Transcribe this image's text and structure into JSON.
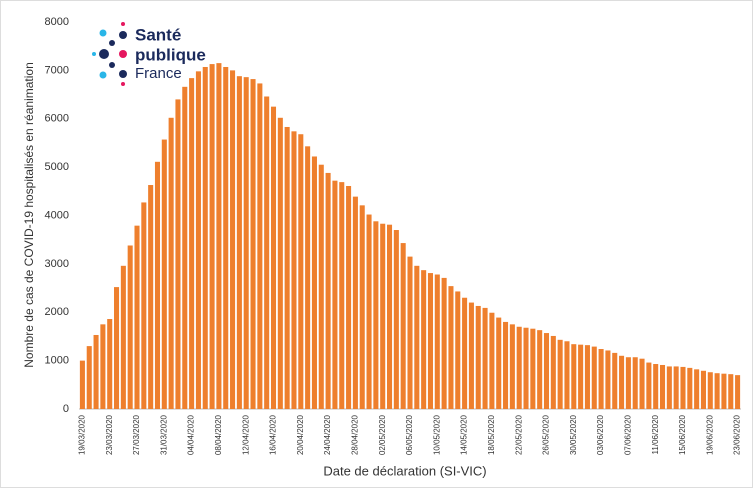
{
  "chart_data": {
    "type": "bar",
    "logo": [
      "Santé",
      "publique",
      "France"
    ],
    "x_label": "Date de déclaration (SI-VIC)",
    "y_label": "Nombre de cas de COVID-19 hospitalisés en réanimation",
    "color": "#ee7f2d",
    "ylim": [
      0,
      8000
    ],
    "yticks": [
      0,
      1000,
      2000,
      3000,
      4000,
      5000,
      6000,
      7000,
      8000
    ],
    "grid": false,
    "categories": [
      "19/03/2020",
      null,
      null,
      null,
      "23/03/2020",
      null,
      null,
      null,
      "27/03/2020",
      null,
      null,
      null,
      "31/03/2020",
      null,
      null,
      null,
      "04/04/2020",
      null,
      null,
      null,
      "08/04/2020",
      null,
      null,
      null,
      "12/04/2020",
      null,
      null,
      null,
      "16/04/2020",
      null,
      null,
      null,
      "20/04/2020",
      null,
      null,
      null,
      "24/04/2020",
      null,
      null,
      null,
      "28/04/2020",
      null,
      null,
      null,
      "02/05/2020",
      null,
      null,
      null,
      "06/05/2020",
      null,
      null,
      null,
      "10/05/2020",
      null,
      null,
      null,
      "14/05/2020",
      null,
      null,
      null,
      "18/05/2020",
      null,
      null,
      null,
      "22/05/2020",
      null,
      null,
      null,
      "26/05/2020",
      null,
      null,
      null,
      "30/05/2020",
      null,
      null,
      null,
      "03/06/2020",
      null,
      null,
      null,
      "07/06/2020",
      null,
      null,
      null,
      "11/06/2020",
      null,
      null,
      null,
      "15/06/2020",
      null,
      null,
      null,
      "19/06/2020",
      null,
      null,
      null,
      "23/06/2020"
    ],
    "values": [
      1000,
      1300,
      1530,
      1750,
      1860,
      2520,
      2960,
      3380,
      3790,
      4270,
      4630,
      5110,
      5570,
      6020,
      6400,
      6660,
      6840,
      6980,
      7070,
      7130,
      7150,
      7070,
      7000,
      6880,
      6860,
      6820,
      6730,
      6460,
      6250,
      6020,
      5830,
      5740,
      5680,
      5430,
      5220,
      5050,
      4880,
      4720,
      4690,
      4610,
      4390,
      4210,
      4020,
      3880,
      3830,
      3810,
      3700,
      3430,
      3150,
      2960,
      2870,
      2810,
      2780,
      2710,
      2540,
      2430,
      2300,
      2200,
      2130,
      2090,
      1990,
      1890,
      1800,
      1750,
      1700,
      1680,
      1660,
      1630,
      1570,
      1510,
      1430,
      1400,
      1340,
      1330,
      1320,
      1290,
      1240,
      1210,
      1160,
      1100,
      1070,
      1070,
      1040,
      960,
      930,
      910,
      880,
      880,
      870,
      850,
      820,
      790,
      760,
      740,
      730,
      720,
      700
    ]
  }
}
